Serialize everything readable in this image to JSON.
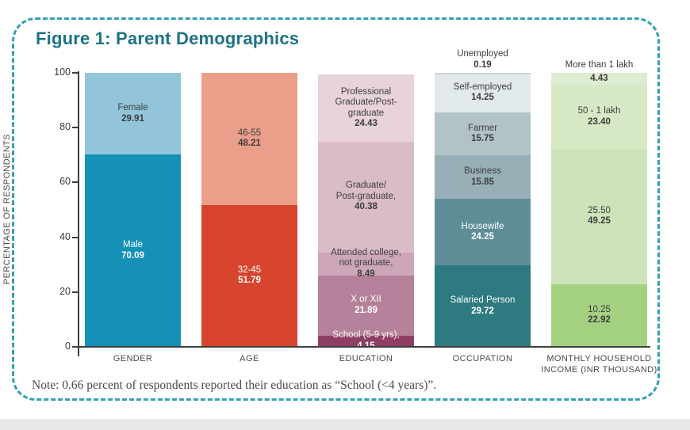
{
  "figure": {
    "note": "Note: 0.66 percent of respondents reported their education as “School (<4 years)”.",
    "border_color": "#33a0b4",
    "title_color": "#1d7386",
    "bottom_strip_color": "#e9e7e7"
  },
  "chart_data": {
    "type": "bar",
    "stacked": true,
    "title": "Figure 1: Parent Demographics",
    "ylabel": "PERCENTAGE OF RESPONDENTS",
    "xlabel": "",
    "ylim": [
      0,
      100
    ],
    "yticks": [
      0,
      20,
      40,
      60,
      80,
      100
    ],
    "grid": false,
    "legend": "none",
    "categories": [
      [
        "GENDER"
      ],
      [
        "AGE"
      ],
      [
        "EDUCATION"
      ],
      [
        "OCCUPATION"
      ],
      [
        "MONTHLY HOUSEHOLD",
        "INCOME (INR THOUSAND)"
      ]
    ],
    "bars": [
      {
        "category": "GENDER",
        "segments": [
          {
            "lines": [
              "Male"
            ],
            "value": 70.09,
            "color": "#1591b8",
            "text": "light"
          },
          {
            "lines": [
              "Female"
            ],
            "value": 29.91,
            "color": "#92c5da",
            "text": "dark"
          }
        ]
      },
      {
        "category": "AGE",
        "segments": [
          {
            "lines": [
              "32-45"
            ],
            "value": 51.79,
            "color": "#d7452f",
            "text": "light"
          },
          {
            "lines": [
              "46-55"
            ],
            "value": 48.21,
            "color": "#eb9e8a",
            "text": "dark"
          }
        ]
      },
      {
        "category": "EDUCATION",
        "segments": [
          {
            "lines": [
              "School (5-9 yrs),"
            ],
            "value": 4.15,
            "color": "#8e3e62",
            "text": "light",
            "inline_value": true
          },
          {
            "lines": [
              "X or XII"
            ],
            "value": 21.89,
            "color": "#b5819b",
            "text": "light"
          },
          {
            "lines": [
              "Attended college,",
              "not graduate,"
            ],
            "value": 8.49,
            "color": "#cda6b9",
            "text": "dark",
            "inline_value": true
          },
          {
            "lines": [
              "Graduate/",
              "Post-graduate,"
            ],
            "value": 40.38,
            "color": "#dabcc9",
            "text": "dark"
          },
          {
            "lines": [
              "Professional",
              "Graduate/Post-",
              "graduate"
            ],
            "value": 24.43,
            "color": "#e8d3db",
            "text": "dark"
          }
        ]
      },
      {
        "category": "OCCUPATION",
        "segments": [
          {
            "lines": [
              "Salaried Person"
            ],
            "value": 29.72,
            "color": "#2d7a80",
            "text": "light"
          },
          {
            "lines": [
              "Housewife"
            ],
            "value": 24.25,
            "color": "#5e8d98",
            "text": "light"
          },
          {
            "lines": [
              "Business"
            ],
            "value": 15.85,
            "color": "#98afb7",
            "text": "dark"
          },
          {
            "lines": [
              "Farmer"
            ],
            "value": 15.75,
            "color": "#b2c3c8",
            "text": "dark"
          },
          {
            "lines": [
              "Self-employed"
            ],
            "value": 14.25,
            "color": "#e2e9eb",
            "text": "dark"
          },
          {
            "lines": [
              "Unemployed"
            ],
            "value": 0.19,
            "color": "#c9d4d8",
            "text": "dark",
            "value_pos": "above"
          }
        ]
      },
      {
        "category": "MONTHLY HOUSEHOLD INCOME (INR THOUSAND)",
        "segments": [
          {
            "lines": [
              "10.25"
            ],
            "value": 22.92,
            "color": "#a4d181",
            "text": "dark"
          },
          {
            "lines": [
              "25.50"
            ],
            "value": 49.25,
            "color": "#cde4ba",
            "text": "dark"
          },
          {
            "lines": [
              "50 - 1 lakh"
            ],
            "value": 23.4,
            "color": "#d6e9c4",
            "text": "dark"
          },
          {
            "lines": [
              "More than 1 lakh"
            ],
            "value": 4.43,
            "color": "#ddedd2",
            "text": "dark",
            "label_pos": "above"
          }
        ]
      }
    ]
  }
}
